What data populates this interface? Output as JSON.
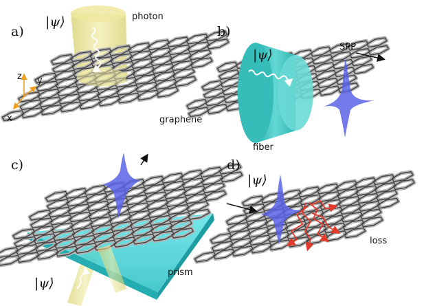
{
  "panels": [
    {
      "id": "a",
      "label": "a)",
      "ket": "|ψ⟩",
      "labels": {
        "photon": "photon",
        "graphene": "graphene"
      },
      "axes": {
        "z": "z",
        "y": "y",
        "x": "x"
      }
    },
    {
      "id": "b",
      "label": "b)",
      "ket": "|ψ⟩",
      "labels": {
        "spp": "SPP",
        "fiber": "fiber"
      }
    },
    {
      "id": "c",
      "label": "c)",
      "ket": "|ψ⟩",
      "labels": {
        "prism": "prism"
      }
    },
    {
      "id": "d",
      "label": "d)",
      "ket": "|ψ⟩",
      "labels": {
        "loss": "loss"
      }
    }
  ],
  "colors": {
    "photon_beam": "#e8e28a",
    "fiber": "#3fc7c4",
    "prism": "#3fd4d8",
    "spp_pulse": "#5b63e6",
    "loss_path": "#e23b2b",
    "axes": "#f0a020"
  }
}
